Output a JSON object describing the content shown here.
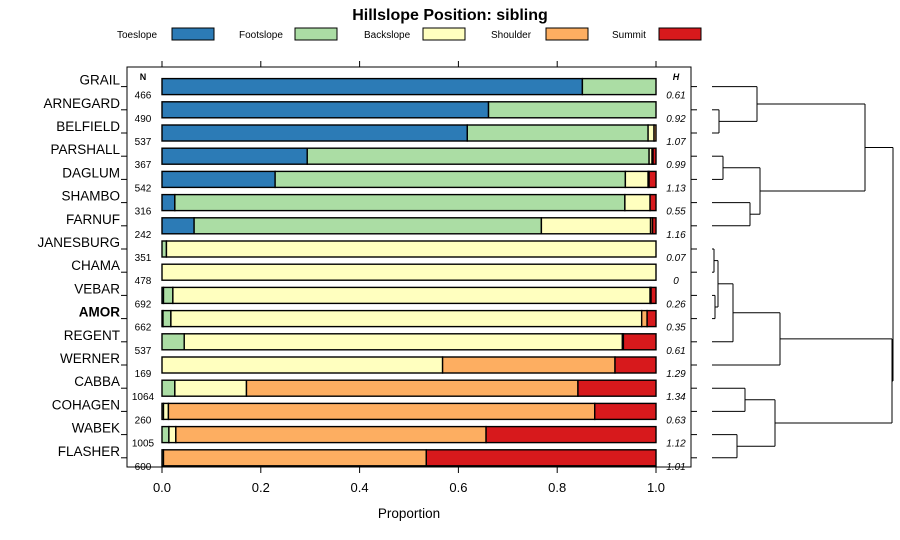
{
  "chart_data": {
    "type": "bar",
    "orientation": "horizontal",
    "stacked": true,
    "title": "Hillslope Position: sibling",
    "xlabel": "Proportion",
    "ylabel": "",
    "xlim": [
      0,
      1
    ],
    "x_ticks": [
      "0.0",
      "0.2",
      "0.4",
      "0.6",
      "0.8",
      "1.0"
    ],
    "n_header": "N",
    "h_header": "H",
    "legend_position": "top",
    "series": [
      {
        "name": "Toeslope",
        "color": "#2C7BB6"
      },
      {
        "name": "Footslope",
        "color": "#ABDDA4"
      },
      {
        "name": "Backslope",
        "color": "#FFFFBF"
      },
      {
        "name": "Shoulder",
        "color": "#FDAE61"
      },
      {
        "name": "Summit",
        "color": "#D7191C"
      }
    ],
    "categories": [
      {
        "name": "GRAIL",
        "n": "466",
        "h": "0.61",
        "bold": false,
        "values": [
          0.851,
          0.149,
          0,
          0,
          0
        ]
      },
      {
        "name": "ARNEGARD",
        "n": "490",
        "h": "0.92",
        "bold": false,
        "values": [
          0.661,
          0.339,
          0,
          0,
          0
        ]
      },
      {
        "name": "BELFIELD",
        "n": "537",
        "h": "1.07",
        "bold": false,
        "values": [
          0.618,
          0.366,
          0.012,
          0.004,
          0
        ]
      },
      {
        "name": "PARSHALL",
        "n": "367",
        "h": "0.99",
        "bold": false,
        "values": [
          0.294,
          0.692,
          0.006,
          0.002,
          0.006
        ]
      },
      {
        "name": "DAGLUM",
        "n": "542",
        "h": "1.13",
        "bold": false,
        "values": [
          0.229,
          0.709,
          0.046,
          0.002,
          0.014
        ]
      },
      {
        "name": "SHAMBO",
        "n": "316",
        "h": "0.55",
        "bold": false,
        "values": [
          0.026,
          0.911,
          0.051,
          0,
          0.012
        ]
      },
      {
        "name": "FARNUF",
        "n": "242",
        "h": "1.16",
        "bold": false,
        "values": [
          0.065,
          0.703,
          0.221,
          0.004,
          0.007
        ]
      },
      {
        "name": "JANESBURG",
        "n": "351",
        "h": "0.07",
        "bold": false,
        "values": [
          0,
          0.009,
          0.991,
          0,
          0
        ]
      },
      {
        "name": "CHAMA",
        "n": "478",
        "h": "0",
        "bold": false,
        "values": [
          0,
          0,
          1.0,
          0,
          0
        ]
      },
      {
        "name": "VEBAR",
        "n": "692",
        "h": "0.26",
        "bold": false,
        "values": [
          0.003,
          0.019,
          0.966,
          0.002,
          0.01
        ]
      },
      {
        "name": "AMOR",
        "n": "662",
        "h": "0.35",
        "bold": true,
        "values": [
          0.002,
          0.016,
          0.953,
          0.011,
          0.018
        ]
      },
      {
        "name": "REGENT",
        "n": "537",
        "h": "0.61",
        "bold": false,
        "values": [
          0,
          0.045,
          0.887,
          0.002,
          0.066
        ]
      },
      {
        "name": "WERNER",
        "n": "169",
        "h": "1.29",
        "bold": false,
        "values": [
          0,
          0,
          0.568,
          0.349,
          0.083
        ]
      },
      {
        "name": "CABBA",
        "n": "1064",
        "h": "1.34",
        "bold": false,
        "values": [
          0,
          0.026,
          0.145,
          0.671,
          0.158
        ]
      },
      {
        "name": "COHAGEN",
        "n": "260",
        "h": "0.63",
        "bold": false,
        "values": [
          0,
          0.003,
          0.01,
          0.863,
          0.124
        ]
      },
      {
        "name": "WABEK",
        "n": "1005",
        "h": "1.12",
        "bold": false,
        "values": [
          0,
          0.014,
          0.014,
          0.628,
          0.344
        ]
      },
      {
        "name": "FLASHER",
        "n": "600",
        "h": "1.01",
        "bold": false,
        "values": [
          0,
          0.003,
          0,
          0.532,
          0.465
        ]
      }
    ],
    "dendrogram": {
      "type": "hierarchical-clustering",
      "clusters": [
        [
          "GRAIL",
          "ARNEGARD",
          "BELFIELD",
          "PARSHALL",
          "DAGLUM",
          "SHAMBO",
          "FARNUF"
        ],
        [
          "JANESBURG",
          "CHAMA",
          "VEBAR",
          "AMOR",
          "REGENT",
          "WERNER",
          "CABBA",
          "COHAGEN",
          "WABEK",
          "FLASHER"
        ]
      ]
    }
  }
}
